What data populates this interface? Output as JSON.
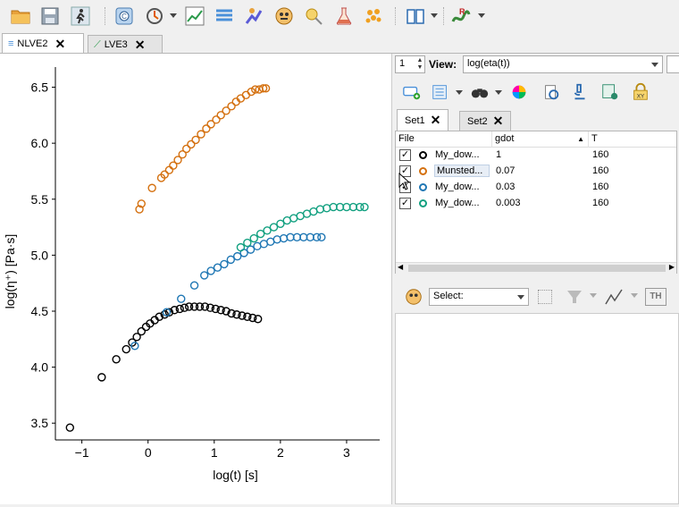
{
  "toolbar": {
    "icons": [
      "open-folder-icon",
      "save-icon",
      "run-icon",
      "shift-icon",
      "cycle-icon",
      "plot-icon",
      "stack-icon",
      "experiment-icon",
      "mask-icon",
      "pin-icon",
      "flask-icon",
      "particles-icon",
      "book-icon",
      "reptate-icon"
    ]
  },
  "tabs": [
    {
      "label": "NLVE2"
    },
    {
      "label": "LVE3"
    }
  ],
  "plot": {
    "xlabel": "log(t) [s]",
    "ylabel": "log(η⁺) [Pa·s]",
    "xlim": [
      -1.4,
      3.5
    ],
    "ylim": [
      3.35,
      6.68
    ],
    "xticks": [
      "−1",
      "0",
      "1",
      "2",
      "3"
    ],
    "xtick_values": [
      -1,
      0,
      1,
      2,
      3
    ],
    "yticks": [
      "3.5",
      "4.0",
      "4.5",
      "5.0",
      "5.5",
      "6.0",
      "6.5"
    ],
    "ytick_values": [
      3.5,
      4.0,
      4.5,
      5.0,
      5.5,
      6.0,
      6.5
    ]
  },
  "chart_data": {
    "type": "scatter",
    "xlabel": "log(t) [s]",
    "ylabel": "log(η⁺) [Pa·s]",
    "xlim": [
      -1.4,
      3.5
    ],
    "ylim": [
      3.35,
      6.68
    ],
    "series": [
      {
        "color": "#000000",
        "x": [
          -1.18,
          -0.7,
          -0.48,
          -0.33,
          -0.24,
          -0.17,
          -0.1,
          -0.03,
          0.03,
          0.1,
          0.17,
          0.25,
          0.32,
          0.4,
          0.48,
          0.55,
          0.62,
          0.7,
          0.78,
          0.86,
          0.94,
          1.02,
          1.1,
          1.18,
          1.26,
          1.34,
          1.42,
          1.5,
          1.58,
          1.66
        ],
        "y": [
          3.46,
          3.91,
          4.07,
          4.16,
          4.22,
          4.27,
          4.32,
          4.36,
          4.39,
          4.42,
          4.45,
          4.47,
          4.49,
          4.51,
          4.52,
          4.53,
          4.54,
          4.54,
          4.54,
          4.54,
          4.53,
          4.52,
          4.51,
          4.5,
          4.48,
          4.47,
          4.46,
          4.45,
          4.44,
          4.43
        ]
      },
      {
        "color": "#d4700f",
        "x": [
          -0.13,
          -0.1,
          0.06,
          0.2,
          0.25,
          0.32,
          0.38,
          0.45,
          0.52,
          0.58,
          0.65,
          0.72,
          0.8,
          0.88,
          0.95,
          1.03,
          1.1,
          1.18,
          1.26,
          1.33,
          1.4,
          1.48,
          1.56,
          1.62,
          1.68,
          1.74,
          1.78
        ],
        "y": [
          5.41,
          5.46,
          5.6,
          5.69,
          5.72,
          5.76,
          5.8,
          5.85,
          5.9,
          5.95,
          5.99,
          6.03,
          6.08,
          6.13,
          6.17,
          6.21,
          6.25,
          6.29,
          6.33,
          6.37,
          6.4,
          6.43,
          6.46,
          6.48,
          6.48,
          6.49,
          6.49
        ]
      },
      {
        "color": "#1f77b4",
        "x": [
          -0.2,
          0.28,
          0.5,
          0.7,
          0.85,
          0.95,
          1.05,
          1.15,
          1.25,
          1.35,
          1.45,
          1.55,
          1.65,
          1.75,
          1.85,
          1.95,
          2.05,
          2.15,
          2.25,
          2.35,
          2.45,
          2.55,
          2.62
        ],
        "y": [
          4.19,
          4.49,
          4.61,
          4.73,
          4.82,
          4.86,
          4.89,
          4.92,
          4.96,
          4.99,
          5.02,
          5.05,
          5.08,
          5.1,
          5.12,
          5.14,
          5.15,
          5.16,
          5.16,
          5.16,
          5.16,
          5.16,
          5.16
        ]
      },
      {
        "color": "#12a080",
        "x": [
          1.4,
          1.5,
          1.6,
          1.7,
          1.8,
          1.9,
          2.0,
          2.1,
          2.2,
          2.3,
          2.4,
          2.5,
          2.6,
          2.7,
          2.8,
          2.9,
          3.0,
          3.1,
          3.2,
          3.27
        ],
        "y": [
          5.07,
          5.11,
          5.15,
          5.19,
          5.22,
          5.25,
          5.28,
          5.31,
          5.33,
          5.35,
          5.37,
          5.39,
          5.41,
          5.42,
          5.43,
          5.43,
          5.43,
          5.43,
          5.43,
          5.43
        ]
      }
    ]
  },
  "right_panel": {
    "spin_value": "1",
    "view_label": "View:",
    "view_value": "log(eta(t))",
    "set_tabs": [
      {
        "label": "Set1"
      },
      {
        "label": "Set2"
      }
    ],
    "table": {
      "headers": [
        "File",
        "gdot",
        "T"
      ],
      "rows": [
        {
          "checked": "✓",
          "color": "#000000",
          "file": "My_dow...",
          "gdot": "1",
          "T": "160"
        },
        {
          "checked": "✓",
          "color": "#d4700f",
          "file": "Munsted...",
          "gdot": "0.07",
          "T": "160"
        },
        {
          "checked": "✓",
          "color": "#1f77b4",
          "file": "My_dow...",
          "gdot": "0.03",
          "T": "160"
        },
        {
          "checked": "✓",
          "color": "#12a080",
          "file": "My_dow...",
          "gdot": "0.003",
          "T": "160"
        }
      ]
    },
    "theory_select": "Select:"
  }
}
